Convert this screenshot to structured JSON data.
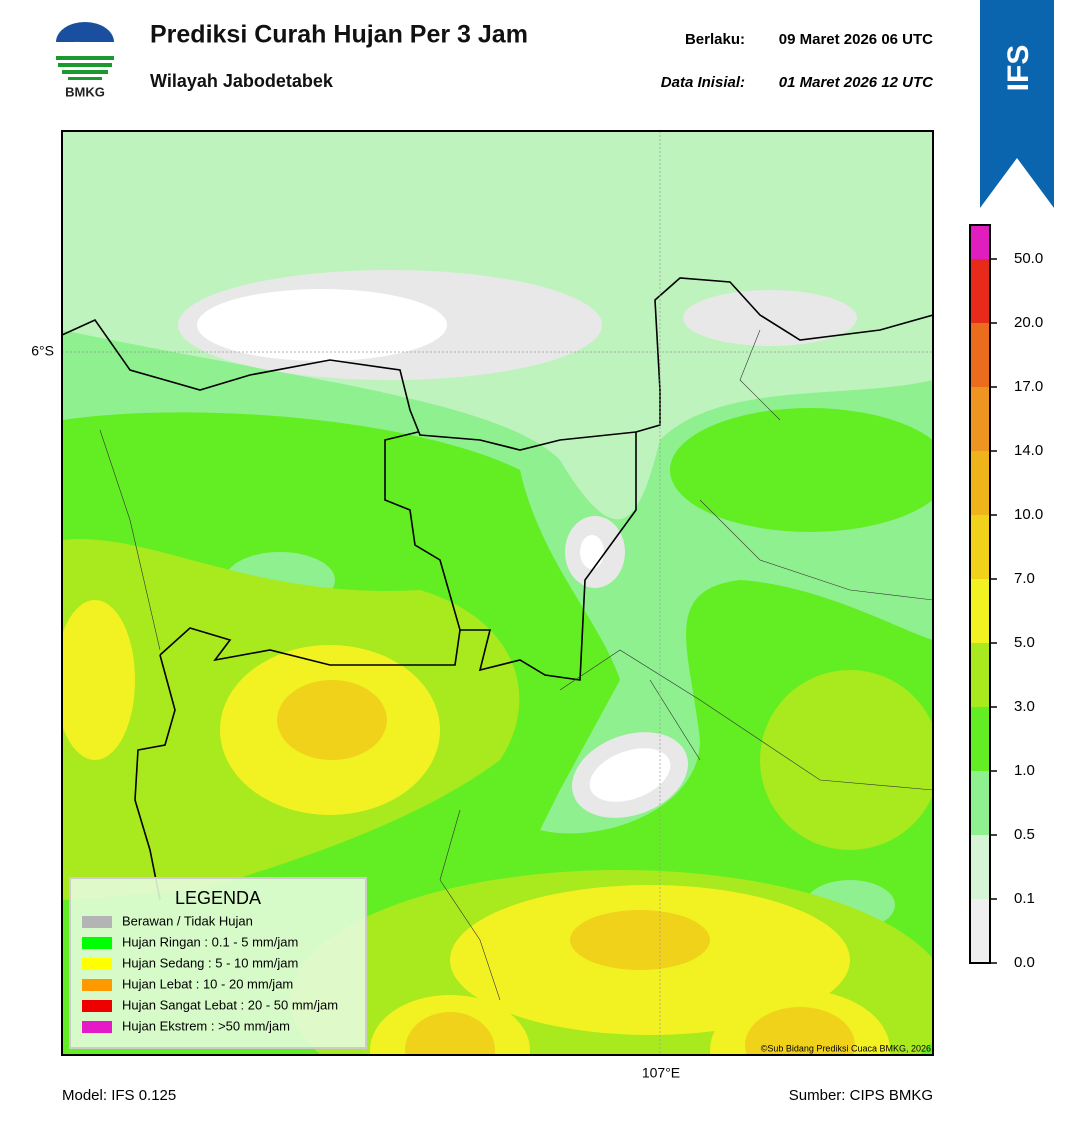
{
  "header": {
    "logo_text": "BMKG",
    "title": "Prediksi Curah Hujan Per 3 Jam",
    "subtitle": "Wilayah Jabodetabek",
    "valid_label": "Berlaku:",
    "valid_time": "09 Maret 2026 06 UTC",
    "initial_label": "Data Inisial:",
    "initial_time": "01 Maret 2026 12 UTC",
    "badge": "IFS"
  },
  "map": {
    "lat_label": "6°S",
    "lon_label": "107°E",
    "credit": "©Sub Bidang Prediksi Cuaca BMKG, 2026"
  },
  "legend": {
    "title": "LEGENDA",
    "entries": [
      {
        "label": "Berawan / Tidak Hujan",
        "color": "#b4b4b4"
      },
      {
        "label": "Hujan Ringan : 0.1 - 5 mm/jam",
        "color": "#00ff00"
      },
      {
        "label": "Hujan Sedang : 5 - 10 mm/jam",
        "color": "#ffff00"
      },
      {
        "label": "Hujan Lebat : 10 - 20 mm/jam",
        "color": "#ff9900"
      },
      {
        "label": "Hujan Sangat Lebat : 20 - 50 mm/jam",
        "color": "#ee0000"
      },
      {
        "label": "Hujan Ekstrem : >50 mm/jam",
        "color": "#e619c8"
      }
    ]
  },
  "colorbar": {
    "ticks": [
      {
        "value": 0,
        "label": "0.0"
      },
      0.1,
      0.5,
      {
        "value": 1,
        "label": "1.0"
      },
      {
        "value": 3,
        "label": "3.0"
      },
      {
        "value": 5,
        "label": "5.0"
      },
      {
        "value": 7,
        "label": "7.0"
      },
      {
        "value": 10,
        "label": "10.0"
      },
      {
        "value": 14,
        "label": "14.0"
      },
      {
        "value": 17,
        "label": "17.0"
      },
      {
        "value": 20,
        "label": "20.0"
      },
      {
        "value": 50,
        "label": "50.0"
      }
    ],
    "colors": [
      "#efefef",
      "#d6f5d6",
      "#8ef08e",
      "#62ee22",
      "#a8ea1e",
      "#f2f222",
      "#f0d21a",
      "#eeb41a",
      "#ee9420",
      "#ec6c1e",
      "#e82a1a",
      "#e01ec0"
    ]
  },
  "footer": {
    "model": "Model: IFS 0.125",
    "source": "Sumber: CIPS BMKG"
  }
}
